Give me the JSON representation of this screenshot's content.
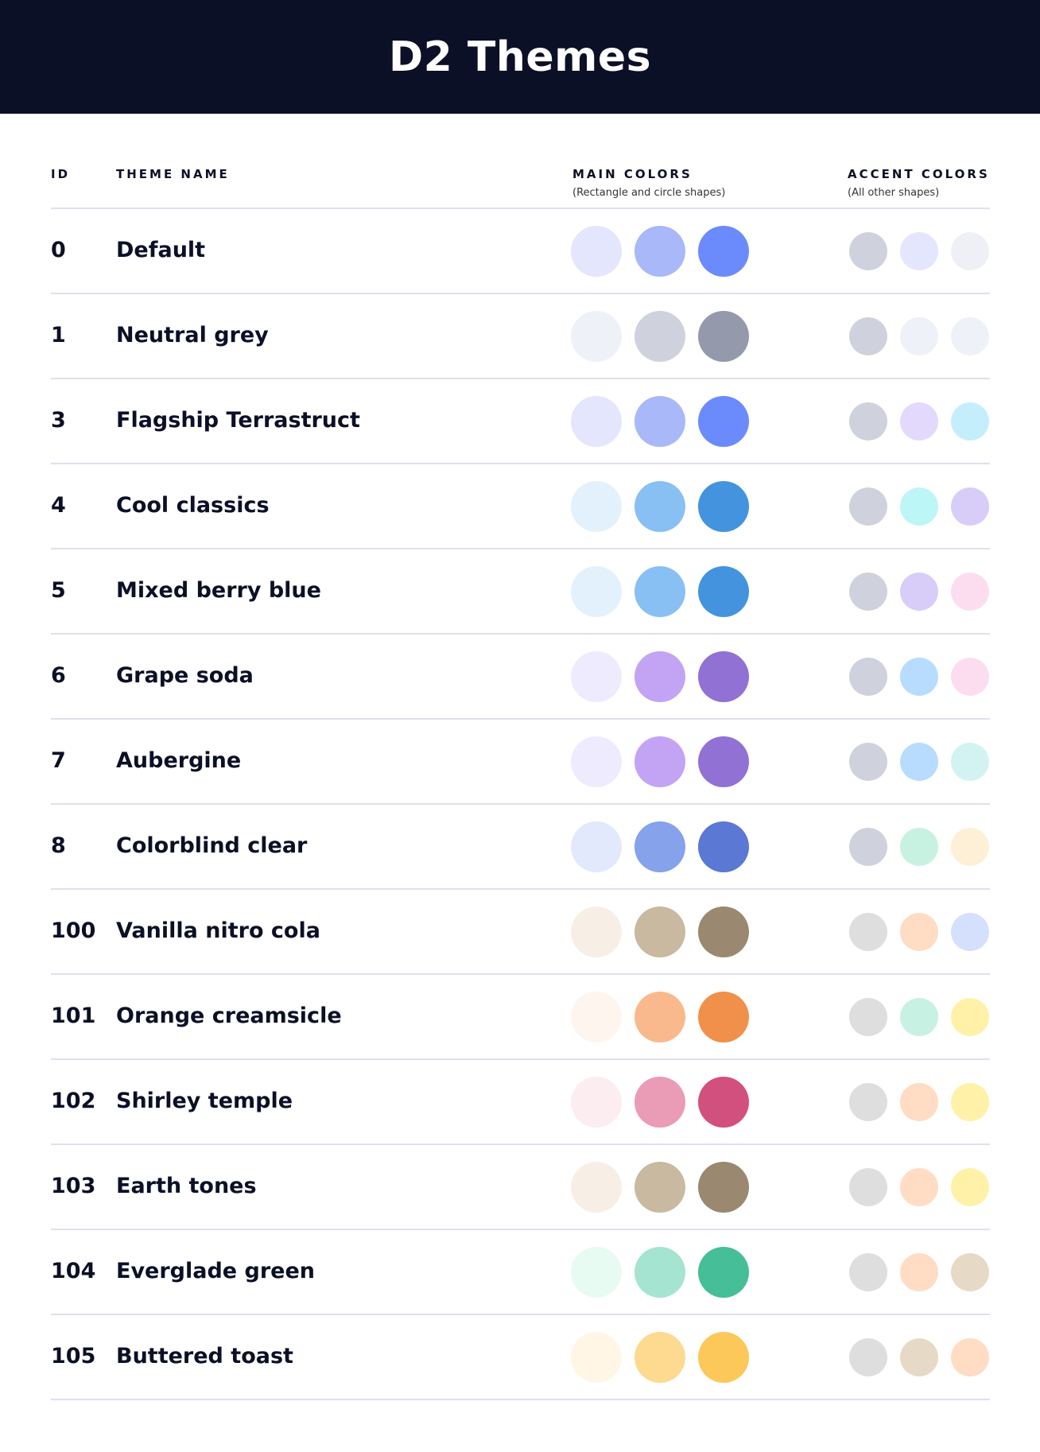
{
  "title": "D2 Themes",
  "columns": {
    "id": "ID",
    "name": "THEME NAME",
    "main": "MAIN COLORS",
    "main_sub": "(Rectangle and circle shapes)",
    "accent": "ACCENT COLORS",
    "accent_sub": "(All other shapes)"
  },
  "themes": [
    {
      "id": "0",
      "name": "Default",
      "main": [
        "#E3E6FD",
        "#A9B8F8",
        "#6B8AFB"
      ],
      "accent": [
        "#CFD2DD",
        "#E3E6FD",
        "#EEF0F6"
      ]
    },
    {
      "id": "1",
      "name": "Neutral grey",
      "main": [
        "#EEF1F8",
        "#CFD2DD",
        "#9499AB"
      ],
      "accent": [
        "#CFD2DD",
        "#EEF1F8",
        "#EEF1F8"
      ]
    },
    {
      "id": "3",
      "name": "Flagship Terrastruct",
      "main": [
        "#E3E6FD",
        "#A9B8F8",
        "#6B8AFB"
      ],
      "accent": [
        "#CFD2DD",
        "#E3D9FD",
        "#C5EEFD"
      ]
    },
    {
      "id": "4",
      "name": "Cool classics",
      "main": [
        "#E3F1FD",
        "#88C0F4",
        "#4493DE"
      ],
      "accent": [
        "#CFD2DD",
        "#BDF6F6",
        "#D8CDF9"
      ]
    },
    {
      "id": "5",
      "name": "Mixed berry blue",
      "main": [
        "#E3F1FD",
        "#88C0F4",
        "#4493DE"
      ],
      "accent": [
        "#CFD2DD",
        "#D8CDF9",
        "#FCDDF0"
      ]
    },
    {
      "id": "6",
      "name": "Grape soda",
      "main": [
        "#EFEBFE",
        "#C3A4F4",
        "#9171D4"
      ],
      "accent": [
        "#CFD2DD",
        "#B8DCFD",
        "#FCDDF0"
      ]
    },
    {
      "id": "7",
      "name": "Aubergine",
      "main": [
        "#EFEBFE",
        "#C3A4F4",
        "#9171D4"
      ],
      "accent": [
        "#CFD2DD",
        "#B8DCFD",
        "#D3F3F2"
      ]
    },
    {
      "id": "8",
      "name": "Colorblind clear",
      "main": [
        "#E3E9FD",
        "#85A2EA",
        "#5A78D4"
      ],
      "accent": [
        "#CFD2DD",
        "#C7F2E2",
        "#FEF0D6"
      ]
    },
    {
      "id": "100",
      "name": "Vanilla nitro cola",
      "main": [
        "#F7EFE5",
        "#C9B9A0",
        "#9A8870"
      ],
      "accent": [
        "#DEDEDE",
        "#FFDCC3",
        "#D5E0FD"
      ]
    },
    {
      "id": "101",
      "name": "Orange creamsicle",
      "main": [
        "#FEF5EF",
        "#FAB98C",
        "#F0904A"
      ],
      "accent": [
        "#DEDEDE",
        "#C7F1E2",
        "#FFF1A8"
      ]
    },
    {
      "id": "102",
      "name": "Shirley temple",
      "main": [
        "#FCEDF1",
        "#EA9BB5",
        "#D2507D"
      ],
      "accent": [
        "#DEDEDE",
        "#FFDCC3",
        "#FFF1A8"
      ]
    },
    {
      "id": "103",
      "name": "Earth tones",
      "main": [
        "#F7EFE5",
        "#C9B9A0",
        "#9A8870"
      ],
      "accent": [
        "#DEDEDE",
        "#FFDCC3",
        "#FFF1A8"
      ]
    },
    {
      "id": "104",
      "name": "Everglade green",
      "main": [
        "#E8FBF2",
        "#A5E4D1",
        "#46BE98"
      ],
      "accent": [
        "#DEDEDE",
        "#FFDCC3",
        "#E6DAC6"
      ]
    },
    {
      "id": "105",
      "name": "Buttered toast",
      "main": [
        "#FFF6E6",
        "#FDDA8F",
        "#FCC85A"
      ],
      "accent": [
        "#DEDEDE",
        "#E6DAC6",
        "#FFDCC3"
      ]
    }
  ]
}
